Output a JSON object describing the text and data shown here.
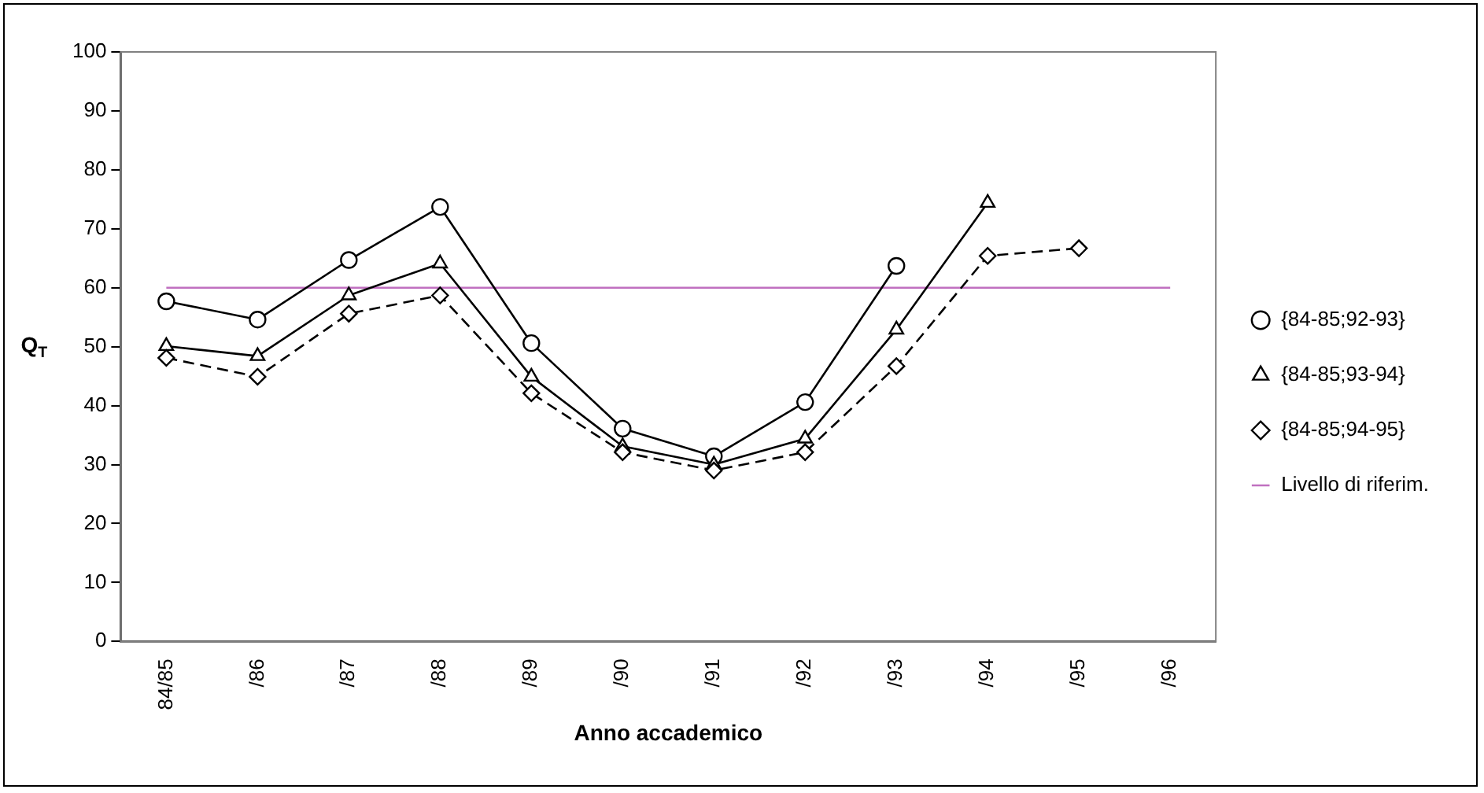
{
  "chart_data": {
    "type": "line",
    "xlabel": "Anno accademico",
    "ylabel": "Q$_{T}$",
    "categories": [
      "84/85",
      "/86",
      "/87",
      "/88",
      "/89",
      "/90",
      "/91",
      "/92",
      "/93",
      "/94",
      "/95",
      "/96"
    ],
    "ylim": [
      0,
      100
    ],
    "yticks": [
      0,
      10,
      20,
      30,
      40,
      50,
      60,
      70,
      80,
      90,
      100
    ],
    "grid": false,
    "legend": "right",
    "series": [
      {
        "name": "{84-85;92-93}",
        "color": "#000000",
        "marker": "circle",
        "line_style": "solid",
        "values": [
          57.7,
          54.6,
          64.7,
          73.7,
          50.6,
          36.1,
          31.4,
          40.6,
          63.7,
          null,
          null,
          null
        ]
      },
      {
        "name": "{84-85;93-94}",
        "color": "#000000",
        "marker": "triangle",
        "line_style": "solid",
        "values": [
          50.1,
          48.4,
          58.7,
          64.1,
          44.9,
          33.1,
          30,
          34.4,
          52.9,
          74.4,
          null,
          null
        ]
      },
      {
        "name": "{84-85;94-95}",
        "color": "#000000",
        "marker": "diamond",
        "line_style": "dashed",
        "values": [
          48.1,
          44.9,
          55.6,
          58.7,
          42.1,
          32.1,
          29,
          32.1,
          46.7,
          65.4,
          66.7,
          null
        ]
      }
    ],
    "ref_lines": [
      {
        "axis": "y",
        "value": 60,
        "label": "Livello di riferim.",
        "color": "#c070c0"
      }
    ]
  }
}
